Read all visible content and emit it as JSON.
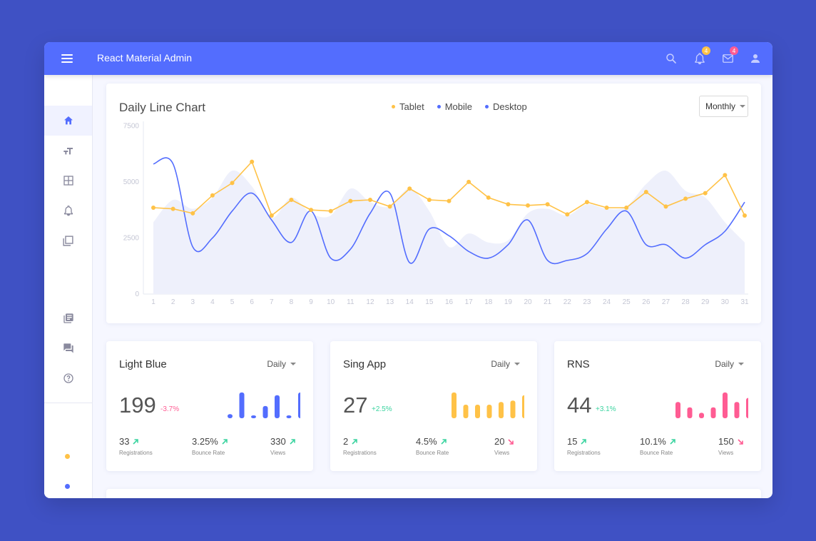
{
  "header": {
    "title": "React Material Admin",
    "notifications_count": "4",
    "messages_count": "4"
  },
  "sidebar": {
    "items": [
      {
        "name": "home",
        "icon": "home-icon",
        "active": true
      },
      {
        "name": "typography",
        "icon": "text-size-icon"
      },
      {
        "name": "tables",
        "icon": "grid-icon"
      },
      {
        "name": "notifications",
        "icon": "bell-icon"
      },
      {
        "name": "ui-elements",
        "icon": "library-icon"
      },
      {
        "name": "library",
        "icon": "book-icon"
      },
      {
        "name": "support",
        "icon": "chat-icon"
      },
      {
        "name": "faq",
        "icon": "help-icon"
      }
    ],
    "dots": [
      "#ffc247",
      "#536dfe"
    ]
  },
  "colors": {
    "primary": "#536dfe",
    "warning": "#ffc247",
    "secondary": "#ff5c93",
    "success": "#3cd4a0"
  },
  "main_chart": {
    "title": "Daily Line Chart",
    "legend": [
      {
        "label": "Tablet",
        "color": "#ffc247"
      },
      {
        "label": "Mobile",
        "color": "#536dfe"
      },
      {
        "label": "Desktop",
        "color": "#536dfe"
      }
    ],
    "range_select": "Monthly"
  },
  "chart_data": {
    "type": "line",
    "x": [
      1,
      2,
      3,
      4,
      5,
      6,
      7,
      8,
      9,
      10,
      11,
      12,
      13,
      14,
      15,
      16,
      17,
      18,
      19,
      20,
      21,
      22,
      23,
      24,
      25,
      26,
      27,
      28,
      29,
      30,
      31
    ],
    "yticks": [
      0,
      2500,
      5000,
      7500
    ],
    "ylim": [
      0,
      8000
    ],
    "series": [
      {
        "name": "Tablet",
        "color": "#ffc247",
        "style": "line-with-points",
        "values": [
          3850,
          3800,
          3600,
          4400,
          4950,
          5900,
          3500,
          4200,
          3750,
          3700,
          4150,
          4200,
          3900,
          4700,
          4200,
          4150,
          5000,
          4300,
          4000,
          3950,
          4000,
          3550,
          4100,
          3850,
          3850,
          4550,
          3900,
          4250,
          4500,
          5300,
          3500
        ]
      },
      {
        "name": "Mobile",
        "color": "#536dfe",
        "style": "smooth-line",
        "values": [
          5800,
          5800,
          2100,
          2500,
          3700,
          4500,
          3300,
          2300,
          3700,
          1600,
          2000,
          3600,
          4500,
          1400,
          2900,
          2600,
          1900,
          1600,
          2200,
          3300,
          1500,
          1500,
          1800,
          2900,
          3700,
          2200,
          2200,
          1600,
          2200,
          2800,
          4100
        ]
      },
      {
        "name": "Desktop",
        "color": "#eef0fb",
        "style": "area",
        "values": [
          3200,
          4200,
          3800,
          4300,
          5500,
          4800,
          3400,
          4300,
          3600,
          3500,
          4700,
          4100,
          3900,
          4700,
          3700,
          2100,
          2700,
          2300,
          2400,
          3600,
          3800,
          3500,
          4000,
          3800,
          3900,
          4900,
          5500,
          4600,
          4300,
          3200,
          2300
        ]
      }
    ]
  },
  "stats": [
    {
      "title": "Light Blue",
      "period": "Daily",
      "value": "199",
      "delta": "-3.7%",
      "delta_color": "#ff5c93",
      "bar_color": "#536dfe",
      "bars": [
        0.15,
        0.95,
        0.06,
        0.45,
        0.85,
        0.06,
        0.95
      ],
      "metrics": [
        {
          "value": "33",
          "label": "Registrations",
          "trend": "up"
        },
        {
          "value": "3.25%",
          "label": "Bounce Rate",
          "trend": "up"
        },
        {
          "value": "330",
          "label": "Views",
          "trend": "up"
        }
      ]
    },
    {
      "title": "Sing App",
      "period": "Daily",
      "value": "27",
      "delta": "+2.5%",
      "delta_color": "#3cd4a0",
      "bar_color": "#ffc247",
      "bars": [
        0.95,
        0.5,
        0.5,
        0.5,
        0.6,
        0.65,
        0.85
      ],
      "metrics": [
        {
          "value": "2",
          "label": "Registrations",
          "trend": "up"
        },
        {
          "value": "4.5%",
          "label": "Bounce Rate",
          "trend": "up"
        },
        {
          "value": "20",
          "label": "Views",
          "trend": "down"
        }
      ]
    },
    {
      "title": "RNS",
      "period": "Daily",
      "value": "44",
      "delta": "+3.1%",
      "delta_color": "#3cd4a0",
      "bar_color": "#ff5c93",
      "bars": [
        0.6,
        0.4,
        0.2,
        0.4,
        0.95,
        0.6,
        0.75
      ],
      "metrics": [
        {
          "value": "15",
          "label": "Registrations",
          "trend": "up"
        },
        {
          "value": "10.1%",
          "label": "Bounce Rate",
          "trend": "up"
        },
        {
          "value": "150",
          "label": "Views",
          "trend": "down"
        }
      ]
    }
  ]
}
